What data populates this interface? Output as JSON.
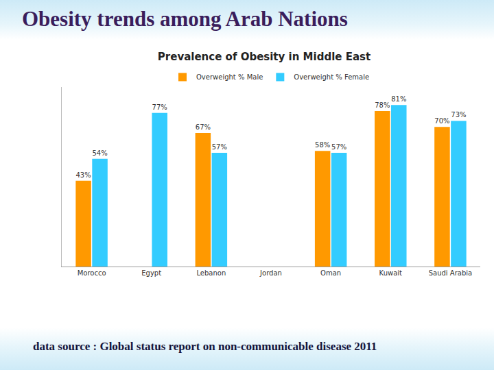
{
  "slide_title": "Obesity trends among Arab Nations",
  "footer": "data source : Global status report on non-communicable disease 2011",
  "chart_data": {
    "type": "bar",
    "title": "Prevalence of Obesity in Middle East",
    "categories": [
      "Morocco",
      "Egypt",
      "Lebanon",
      "Jordan",
      "Oman",
      "Kuwait",
      "Saudi Arabia"
    ],
    "series": [
      {
        "name": "Overweight % Male",
        "color": "#ff9900",
        "values": [
          43,
          null,
          67,
          null,
          58,
          78,
          70
        ],
        "value_labels": [
          "43%",
          null,
          "67%",
          null,
          "58%",
          "78%",
          "70%"
        ]
      },
      {
        "name": "Overweight % Female",
        "color": "#33ccff",
        "values": [
          54,
          77,
          57,
          null,
          57,
          81,
          73
        ],
        "value_labels": [
          "54%",
          "77%",
          "57%",
          null,
          "57%",
          "81%",
          "73%"
        ]
      }
    ],
    "ylim": [
      0,
      90
    ],
    "grid": false,
    "legend": "top",
    "data_labels": true,
    "tick_labels": "x"
  }
}
